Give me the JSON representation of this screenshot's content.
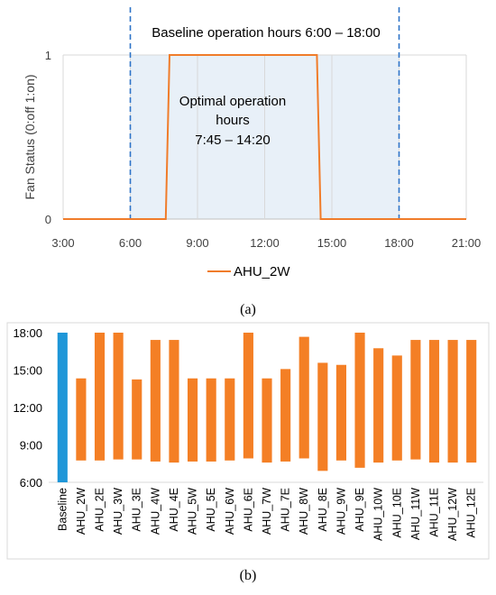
{
  "colors": {
    "fan_line": "#f07c2a",
    "bar": "#f47f25",
    "baseline_bar": "#1e96d8",
    "dash": "#2e74c8",
    "shade": "#e8f0f8",
    "grid": "#d9d9d9",
    "axis": "#bfbfbf"
  },
  "panel_a": {
    "label": "(a)",
    "annotation_baseline": "Baseline operation hours 6:00 – 18:00",
    "annotation_optimal": [
      "Optimal operation",
      "hours",
      "7:45 – 14:20"
    ],
    "chart_data": {
      "type": "line",
      "ylabel": "Fan Status (0:off 1:on)",
      "x_ticks": [
        "3:00",
        "6:00",
        "9:00",
        "12:00",
        "15:00",
        "18:00",
        "21:00"
      ],
      "y_ticks": [
        "0",
        "1"
      ],
      "xlim": [
        "3:00",
        "21:00"
      ],
      "ylim": [
        0,
        1
      ],
      "series": [
        {
          "name": "AHU_2W",
          "x": [
            "3:00",
            "7:35",
            "7:45",
            "14:20",
            "14:30",
            "21:00"
          ],
          "y": [
            0,
            0,
            1,
            1,
            0,
            0
          ]
        }
      ],
      "baseline_window": [
        "6:00",
        "18:00"
      ],
      "optimal_window": [
        "7:45",
        "14:20"
      ],
      "legend_position": "bottom"
    }
  },
  "panel_b": {
    "label": "(b)",
    "chart_data": {
      "type": "bar",
      "y_ticks": [
        "6:00",
        "9:00",
        "12:00",
        "15:00",
        "18:00"
      ],
      "ylim": [
        "6:00",
        "18:00"
      ],
      "categories": [
        "Baseline",
        "AHU_2W",
        "AHU_2E",
        "AHU_3W",
        "AHU_3E",
        "AHU_4W",
        "AHU_4E",
        "AHU_5W",
        "AHU_5E",
        "AHU_6W",
        "AHU_6E",
        "AHU_7W",
        "AHU_7E",
        "AHU_8W",
        "AHU_8E",
        "AHU_9W",
        "AHU_9E",
        "AHU_10W",
        "AHU_10E",
        "AHU_11W",
        "AHU_11E",
        "AHU_12W",
        "AHU_12E"
      ],
      "start": [
        "6:00",
        "7:45",
        "7:45",
        "7:50",
        "7:50",
        "7:40",
        "7:35",
        "7:40",
        "7:40",
        "7:45",
        "7:55",
        "7:35",
        "7:40",
        "7:55",
        "6:55",
        "7:45",
        "7:10",
        "7:35",
        "7:45",
        "7:50",
        "7:35",
        "7:35",
        "7:35"
      ],
      "end": [
        "18:00",
        "14:20",
        "18:00",
        "18:00",
        "14:15",
        "17:25",
        "17:25",
        "14:20",
        "14:20",
        "14:20",
        "18:00",
        "14:20",
        "15:05",
        "17:40",
        "15:35",
        "15:25",
        "18:00",
        "16:45",
        "16:10",
        "17:25",
        "17:25",
        "17:25",
        "17:25"
      ]
    }
  }
}
